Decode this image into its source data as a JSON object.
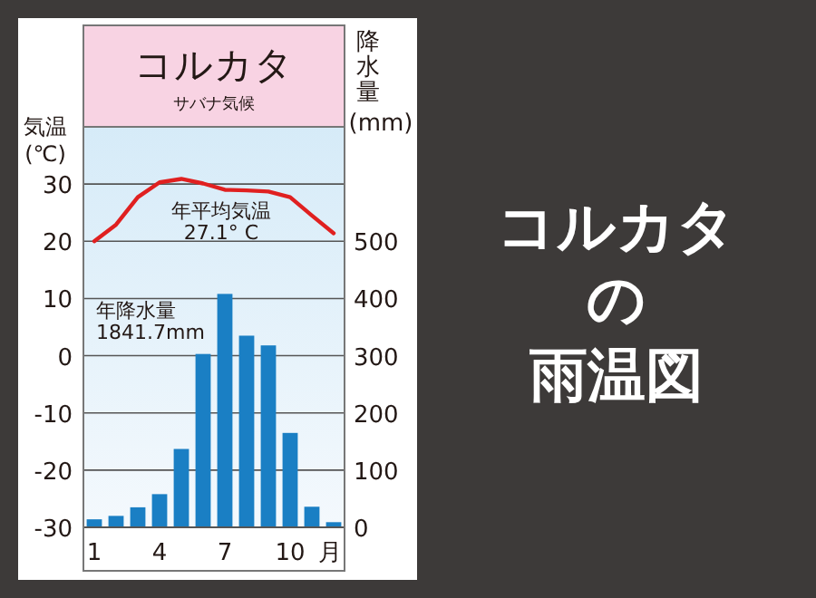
{
  "chart_data": {
    "type": "bar",
    "title": "コルカタ",
    "subtitle": "サバナ気候",
    "ylabel": "気温\n(℃)",
    "y2label": "降水量\n(mm)",
    "xlabel": "月",
    "categories": [
      "1",
      null,
      null,
      "4",
      null,
      null,
      "7",
      null,
      null,
      "10",
      null,
      null
    ],
    "series": [
      {
        "axis": "y2",
        "color": "#1a7fc4",
        "values": [
          14,
          20,
          35,
          58,
          137,
          303,
          408,
          335,
          318,
          165,
          36,
          9
        ]
      },
      {
        "type": "line",
        "axis": "y",
        "color": "#e02020",
        "values": [
          20.0,
          22.9,
          27.7,
          30.3,
          30.9,
          30.1,
          29.0,
          28.9,
          28.7,
          27.7,
          24.5,
          21.4
        ]
      }
    ],
    "ylim": [
      -30,
      40
    ],
    "yticks": [
      -30,
      -20,
      -10,
      0,
      10,
      20,
      30
    ],
    "y2lim": [
      0,
      700
    ],
    "y2ticks": [
      0,
      100,
      200,
      300,
      400,
      500
    ],
    "grid": "y",
    "marker": "none",
    "line_style": "solid",
    "annotations": [
      "年平均気温\n27.1° C",
      "年降水量\n1841.7mm",
      "コルカタ",
      "の",
      "雨温図"
    ]
  }
}
